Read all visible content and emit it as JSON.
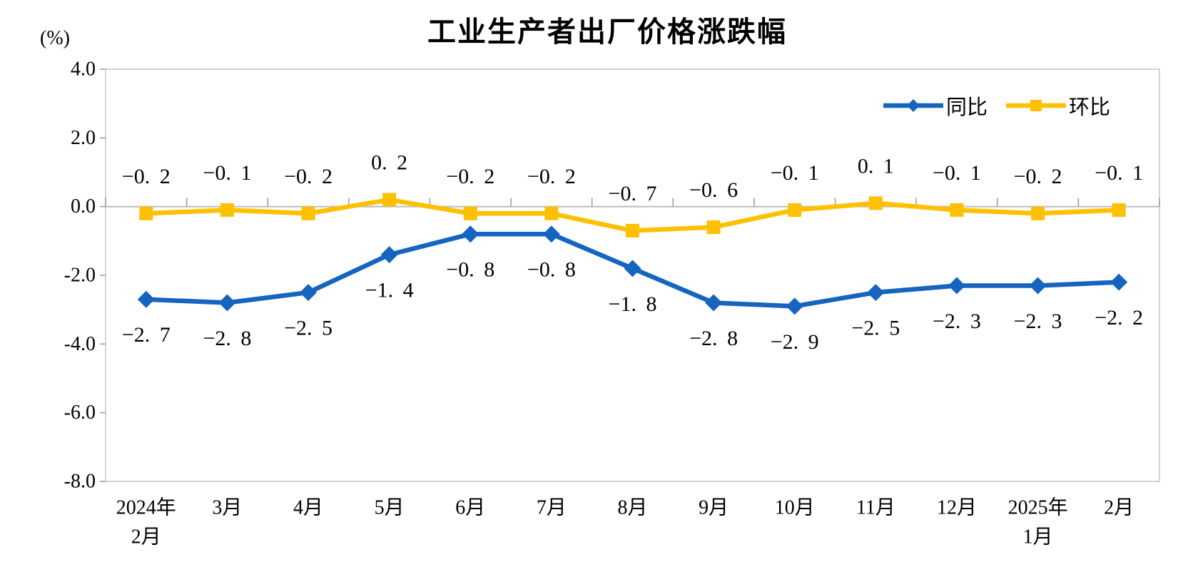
{
  "title": "工业生产者出厂价格涨跌幅",
  "y_axis_unit": "(%)",
  "colors": {
    "yoy_blue": "#1565C0",
    "mom_yellow": "#FFC000",
    "zero_axis_gray": "#BFBFBF",
    "border_gray": "#C9C9C9",
    "tick_gray": "#A0A0A0",
    "text_black": "#000000"
  },
  "legend": {
    "yoy_label": "同比",
    "mom_label": "环比"
  },
  "chart_data": {
    "type": "line",
    "title": "工业生产者出厂价格涨跌幅",
    "xlabel": "",
    "ylabel": "(%)",
    "ylim": [
      -8.0,
      4.0
    ],
    "y_ticks": [
      4.0,
      2.0,
      0.0,
      -2.0,
      -4.0,
      -6.0,
      -8.0
    ],
    "grid": false,
    "legend_position": "top-right",
    "categories": [
      [
        "2024年",
        "2月"
      ],
      [
        "3月"
      ],
      [
        "4月"
      ],
      [
        "5月"
      ],
      [
        "6月"
      ],
      [
        "7月"
      ],
      [
        "8月"
      ],
      [
        "9月"
      ],
      [
        "10月"
      ],
      [
        "11月"
      ],
      [
        "12月"
      ],
      [
        "2025年",
        "1月"
      ],
      [
        "2月"
      ]
    ],
    "series": [
      {
        "name": "同比",
        "marker": "diamond",
        "color": "#1565C0",
        "label_position": "below",
        "values": [
          -2.7,
          -2.8,
          -2.5,
          -1.4,
          -0.8,
          -0.8,
          -1.8,
          -2.8,
          -2.9,
          -2.5,
          -2.3,
          -2.3,
          -2.2
        ]
      },
      {
        "name": "环比",
        "marker": "square",
        "color": "#FFC000",
        "label_position": "above",
        "values": [
          -0.2,
          -0.1,
          -0.2,
          0.2,
          -0.2,
          -0.2,
          -0.7,
          -0.6,
          -0.1,
          0.1,
          -0.1,
          -0.2,
          -0.1
        ]
      }
    ]
  }
}
